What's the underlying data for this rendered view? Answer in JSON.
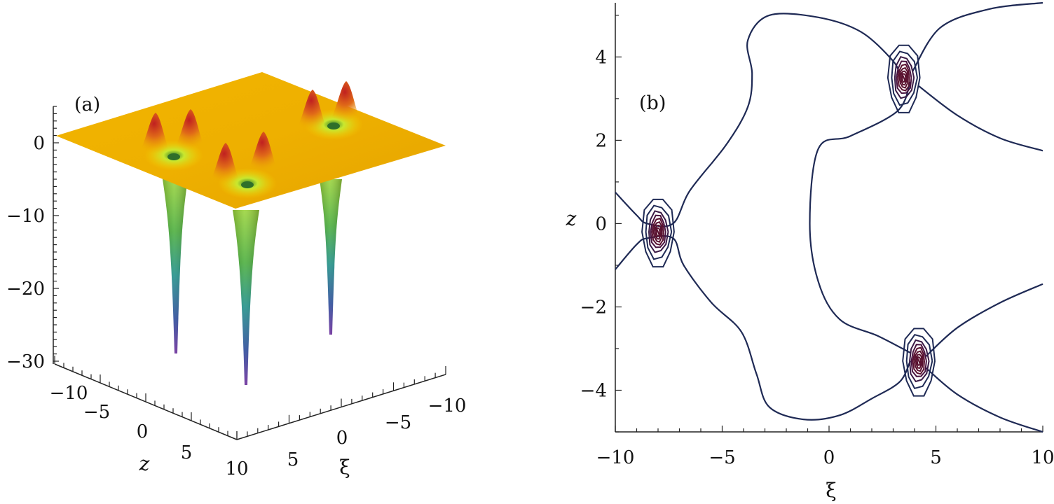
{
  "chart_data": [
    {
      "panel": "(a)",
      "type": "surface3d",
      "xlabel": "ξ",
      "ylabel": "z",
      "zlabel": "",
      "x_ticks": [
        "10",
        "5",
        "0",
        "−5",
        "−10"
      ],
      "y_ticks": [
        "−10",
        "−5",
        "0",
        "5",
        "10"
      ],
      "z_ticks": [
        "0",
        "−10",
        "−20",
        "−30"
      ],
      "x_range": [
        -10,
        10
      ],
      "y_range": [
        -10,
        10
      ],
      "z_range": [
        -30,
        5
      ],
      "colormap": [
        "#f0b400",
        "#e88a10",
        "#c8281e",
        "#f0f020",
        "#58b838",
        "#1f9088",
        "#2a4a9a",
        "#6a2a9a"
      ],
      "baseline": 1,
      "dips": [
        {
          "xi": -8,
          "z": -0.2,
          "min": -29
        },
        {
          "xi": 3.5,
          "z": 3.5,
          "min": -33
        },
        {
          "xi": 4.2,
          "z": -3.3,
          "min": -26
        }
      ],
      "peak_height": 4
    },
    {
      "panel": "(b)",
      "type": "contour",
      "xlabel": "ξ",
      "ylabel": "z",
      "x_ticks": [
        "−10",
        "−5",
        "0",
        "5",
        "10"
      ],
      "y_ticks": [
        "4",
        "2",
        "0",
        "−2",
        "−4"
      ],
      "xlim": [
        -10,
        10
      ],
      "ylim": [
        -5,
        5.3
      ],
      "line_colors": [
        "#1f2a55",
        "#5a1230"
      ],
      "centers": [
        {
          "xi": -8,
          "z": -0.2
        },
        {
          "xi": 3.5,
          "z": 3.5
        },
        {
          "xi": 4.2,
          "z": -3.3
        }
      ]
    }
  ]
}
